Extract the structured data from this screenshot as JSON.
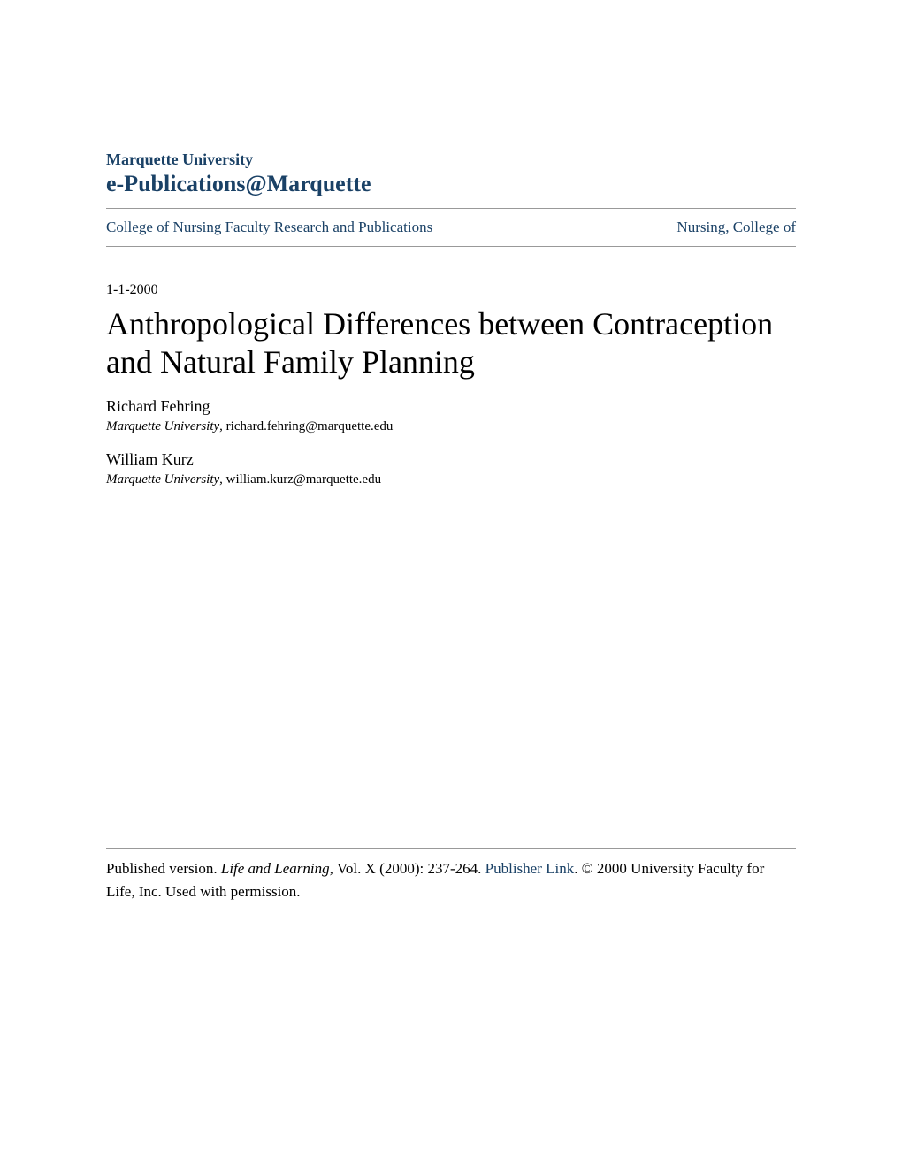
{
  "header": {
    "university": "Marquette University",
    "site_name": "e-Publications@Marquette"
  },
  "breadcrumb": {
    "left": "College of Nursing Faculty Research and Publications",
    "right": "Nursing, College of"
  },
  "publication": {
    "date": "1-1-2000",
    "title": "Anthropological Differences between Contraception and Natural Family Planning"
  },
  "authors": [
    {
      "name": "Richard Fehring",
      "affiliation_institution": "Marquette University",
      "affiliation_email": ", richard.fehring@marquette.edu"
    },
    {
      "name": "William Kurz",
      "affiliation_institution": "Marquette University",
      "affiliation_email": ", william.kurz@marquette.edu"
    }
  ],
  "footer": {
    "prefix": "Published version. ",
    "journal": "Life and Learning",
    "citation": ", Vol. X (2000): 237-264. ",
    "link_text": "Publisher Link",
    "suffix": ". © 2000 University Faculty for Life, Inc. Used with permission."
  },
  "colors": {
    "link_color": "#1a4166",
    "text_color": "#000000",
    "divider_color": "#999999",
    "background_color": "#ffffff"
  },
  "typography": {
    "university_fontsize": 18,
    "site_name_fontsize": 26,
    "breadcrumb_fontsize": 17,
    "date_fontsize": 16,
    "title_fontsize": 36,
    "author_name_fontsize": 18,
    "author_affiliation_fontsize": 15,
    "footer_fontsize": 17
  }
}
